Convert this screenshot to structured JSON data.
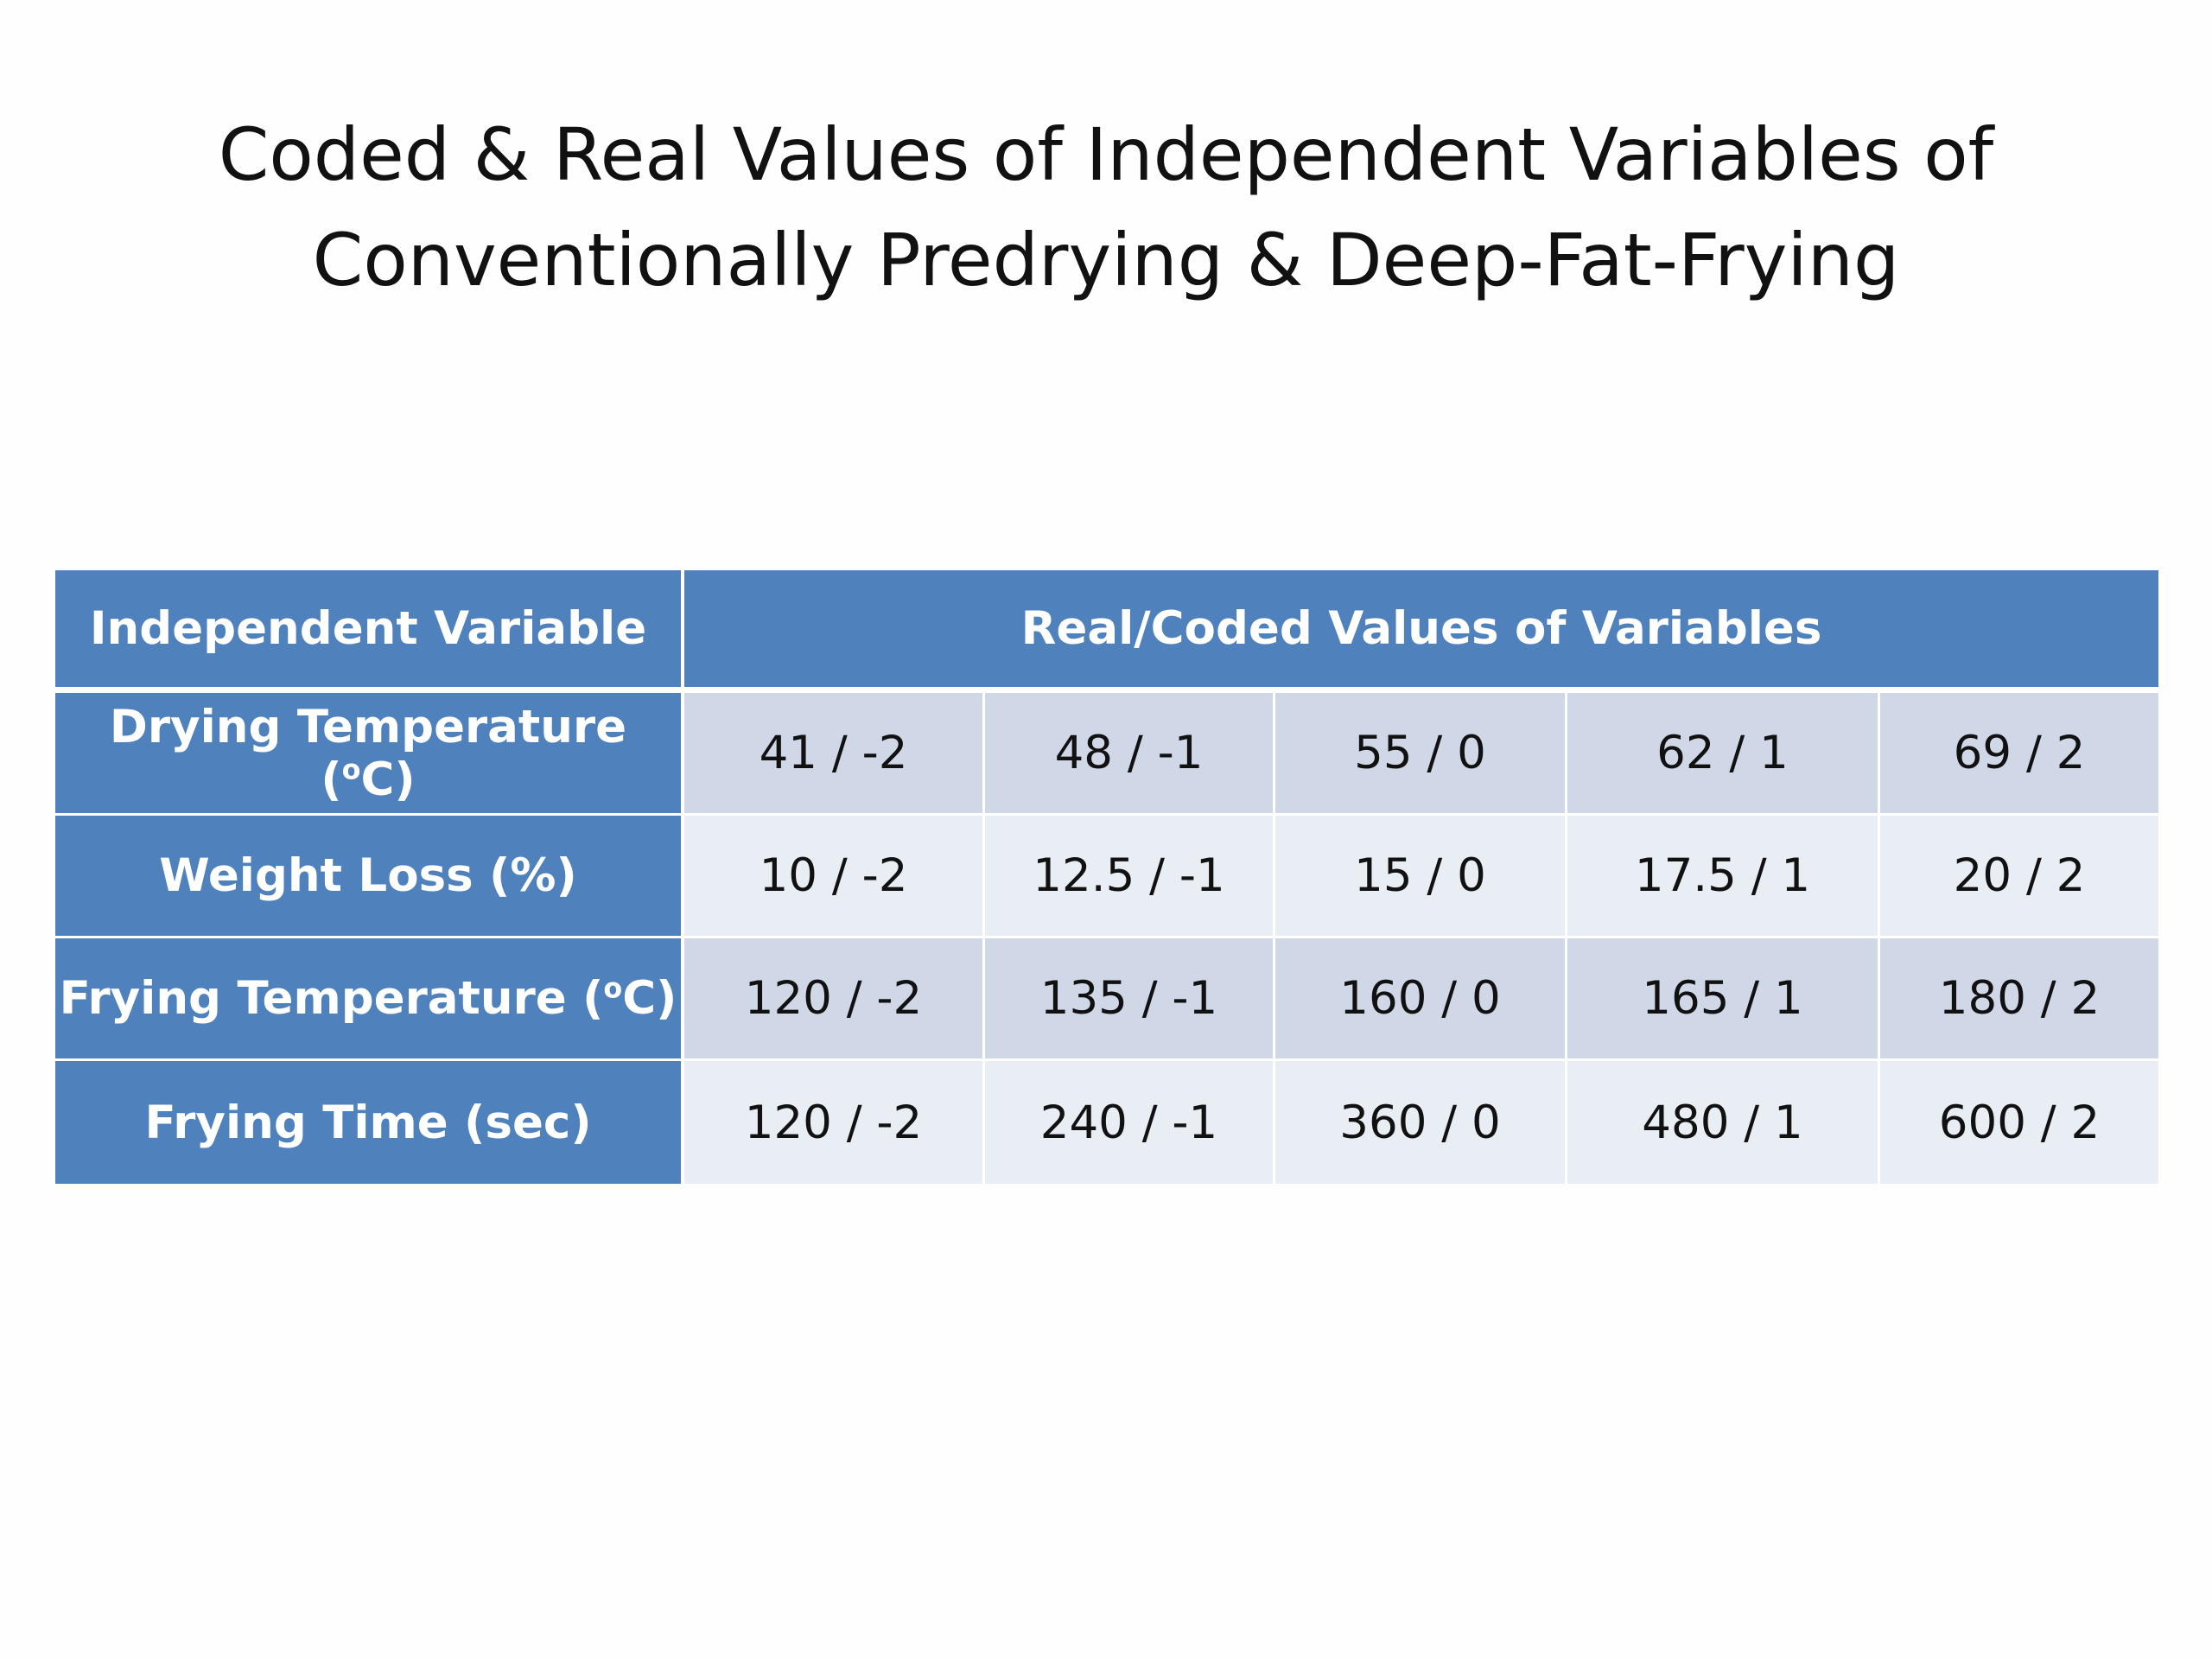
{
  "title": {
    "line1": "Coded & Real Values of Independent Variables of",
    "line2": "Conventionally Predrying & Deep-Fat-Frying"
  },
  "table": {
    "header": {
      "variable_col": "Independent Variable",
      "values_col": "Real/Coded Values of  Variables"
    },
    "rows": [
      {
        "label_prefix": "Drying Temperature (",
        "label_sup": "o",
        "label_suffix": "C)",
        "values": [
          "41 / -2",
          "48 / -1",
          "55 / 0",
          "62 / 1",
          "69 / 2"
        ]
      },
      {
        "label_prefix": "Weight Loss (%)",
        "label_sup": "",
        "label_suffix": "",
        "values": [
          "10 / -2",
          "12.5 / -1",
          "15 / 0",
          "17.5 / 1",
          "20 / 2"
        ]
      },
      {
        "label_prefix": "Frying Temperature (",
        "label_sup": "o",
        "label_suffix": "C)",
        "values": [
          "120 / -2",
          "135 / -1",
          "160 / 0",
          "165 / 1",
          "180 / 2"
        ]
      },
      {
        "label_prefix": "Frying Time (sec)",
        "label_sup": "",
        "label_suffix": "",
        "values": [
          "120 / -2",
          "240 / -1",
          "360 / 0",
          "480 / 1",
          "600 / 2"
        ]
      }
    ]
  },
  "colors": {
    "header_blue": "#4f81bd",
    "band_dark": "#d0d8e8",
    "band_light": "#e9edf4",
    "background": "#fefefe"
  }
}
